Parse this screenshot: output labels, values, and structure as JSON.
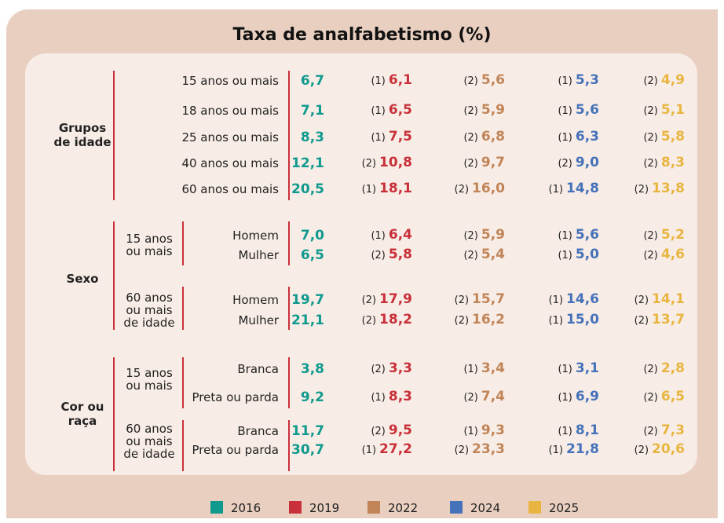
{
  "title": "Taxa de analfabetismo (%)",
  "legend": [
    {
      "year": "2016",
      "color": "#109a8e"
    },
    {
      "year": "2019",
      "color": "#c8313a"
    },
    {
      "year": "2022",
      "color": "#c08457"
    },
    {
      "year": "2024",
      "color": "#4572b8"
    },
    {
      "year": "2025",
      "color": "#e8b640"
    }
  ],
  "sections": [
    {
      "label": [
        "Grupos",
        "de idade"
      ],
      "blocks": [
        {
          "rows": [
            {
              "label": "15 anos ou mais",
              "cells": [
                {
                  "value": "6,7"
                },
                {
                  "note": "(1)",
                  "value": "6,1"
                },
                {
                  "note": "(2)",
                  "value": "5,6"
                },
                {
                  "note": "(1)",
                  "value": "5,3"
                },
                {
                  "note": "(2)",
                  "value": "4,9"
                }
              ]
            },
            {
              "label": "18 anos ou mais",
              "cells": [
                {
                  "value": "7,1"
                },
                {
                  "note": "(1)",
                  "value": "6,5"
                },
                {
                  "note": "(2)",
                  "value": "5,9"
                },
                {
                  "note": "(1)",
                  "value": "5,6"
                },
                {
                  "note": "(2)",
                  "value": "5,1"
                }
              ]
            },
            {
              "label": "25 anos ou mais",
              "cells": [
                {
                  "value": "8,3"
                },
                {
                  "note": "(1)",
                  "value": "7,5"
                },
                {
                  "note": "(2)",
                  "value": "6,8"
                },
                {
                  "note": "(1)",
                  "value": "6,3"
                },
                {
                  "note": "(2)",
                  "value": "5,8"
                }
              ]
            },
            {
              "label": "40 anos ou mais",
              "cells": [
                {
                  "value": "12,1"
                },
                {
                  "note": "(2)",
                  "value": "10,8"
                },
                {
                  "note": "(2)",
                  "value": "9,7"
                },
                {
                  "note": "(2)",
                  "value": "9,0"
                },
                {
                  "note": "(2)",
                  "value": "8,3"
                }
              ]
            },
            {
              "label": "60 anos ou mais",
              "cells": [
                {
                  "value": "20,5"
                },
                {
                  "note": "(1)",
                  "value": "18,1"
                },
                {
                  "note": "(2)",
                  "value": "16,0"
                },
                {
                  "note": "(1)",
                  "value": "14,8"
                },
                {
                  "note": "(2)",
                  "value": "13,8"
                }
              ]
            }
          ]
        }
      ]
    },
    {
      "label": [
        "Sexo"
      ],
      "blocks": [
        {
          "label": [
            "15 anos",
            "ou mais"
          ],
          "rows": [
            {
              "label": "Homem",
              "cells": [
                {
                  "value": "7,0"
                },
                {
                  "note": "(1)",
                  "value": "6,4"
                },
                {
                  "note": "(2)",
                  "value": "5,9"
                },
                {
                  "note": "(1)",
                  "value": "5,6"
                },
                {
                  "note": "(2)",
                  "value": "5,2"
                }
              ]
            },
            {
              "label": "Mulher",
              "cells": [
                {
                  "value": "6,5"
                },
                {
                  "note": "(2)",
                  "value": "5,8"
                },
                {
                  "note": "(2)",
                  "value": "5,4"
                },
                {
                  "note": "(1)",
                  "value": "5,0"
                },
                {
                  "note": "(2)",
                  "value": "4,6"
                }
              ]
            }
          ]
        },
        {
          "label": [
            "60 anos",
            "ou mais",
            "de idade"
          ],
          "rows": [
            {
              "label": "Homem",
              "cells": [
                {
                  "value": "19,7"
                },
                {
                  "note": "(2)",
                  "value": "17,9"
                },
                {
                  "note": "(2)",
                  "value": "15,7"
                },
                {
                  "note": "(1)",
                  "value": "14,6"
                },
                {
                  "note": "(2)",
                  "value": "14,1"
                }
              ]
            },
            {
              "label": "Mulher",
              "cells": [
                {
                  "value": "21,1"
                },
                {
                  "note": "(2)",
                  "value": "18,2"
                },
                {
                  "note": "(2)",
                  "value": "16,2"
                },
                {
                  "note": "(1)",
                  "value": "15,0"
                },
                {
                  "note": "(2)",
                  "value": "13,7"
                }
              ]
            }
          ]
        }
      ]
    },
    {
      "label": [
        "Cor ou",
        "raça"
      ],
      "blocks": [
        {
          "label": [
            "15 anos",
            "ou mais"
          ],
          "rows": [
            {
              "label": "Branca",
              "cells": [
                {
                  "value": "3,8"
                },
                {
                  "note": "(2)",
                  "value": "3,3"
                },
                {
                  "note": "(1)",
                  "value": "3,4"
                },
                {
                  "note": "(1)",
                  "value": "3,1"
                },
                {
                  "note": "(2)",
                  "value": "2,8"
                }
              ]
            },
            {
              "label": "Preta ou parda",
              "cells": [
                {
                  "value": "9,2"
                },
                {
                  "note": "(1)",
                  "value": "8,3"
                },
                {
                  "note": "(2)",
                  "value": "7,4"
                },
                {
                  "note": "(1)",
                  "value": "6,9"
                },
                {
                  "note": "(2)",
                  "value": "6,5"
                }
              ]
            }
          ]
        },
        {
          "label": [
            "60 anos",
            "ou mais",
            "de idade"
          ],
          "rows": [
            {
              "label": "Branca",
              "cells": [
                {
                  "value": "11,7"
                },
                {
                  "note": "(2)",
                  "value": "9,5"
                },
                {
                  "note": "(1)",
                  "value": "9,3"
                },
                {
                  "note": "(1)",
                  "value": "8,1"
                },
                {
                  "note": "(2)",
                  "value": "7,3"
                }
              ]
            },
            {
              "label": "Preta ou parda",
              "cells": [
                {
                  "value": "30,7"
                },
                {
                  "note": "(1)",
                  "value": "27,2"
                },
                {
                  "note": "(2)",
                  "value": "23,3"
                },
                {
                  "note": "(1)",
                  "value": "21,8"
                },
                {
                  "note": "(2)",
                  "value": "20,6"
                }
              ]
            }
          ]
        }
      ]
    }
  ]
}
